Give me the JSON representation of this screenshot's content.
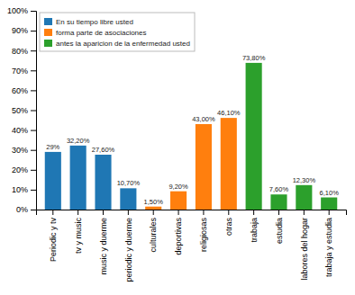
{
  "chart_data": {
    "type": "bar",
    "categories": [
      "Periodic y tv",
      "tv y music",
      "music y duerme",
      "periodic y duerme",
      "culturales",
      "deportivas",
      "religiosas",
      "otras",
      "trabaja",
      "estudia",
      "labores del hogar",
      "trabaja y estudia"
    ],
    "series": [
      {
        "name": "En su tiempo libre usted",
        "values": [
          29,
          32.2,
          27.6,
          10.7,
          0,
          0,
          0,
          0,
          0,
          0,
          0,
          0
        ],
        "value_labels": [
          "29%",
          "32,20%",
          "27,60%",
          "10,70%",
          null,
          null,
          null,
          null,
          null,
          null,
          null,
          null
        ]
      },
      {
        "name": "forma parte de asociaciones",
        "values": [
          0,
          0,
          0,
          0,
          1.5,
          9.2,
          43.0,
          46.1,
          0,
          0,
          0,
          0
        ],
        "value_labels": [
          null,
          null,
          null,
          null,
          "1,50%",
          "9,20%",
          "43,00%",
          "46,10%",
          null,
          null,
          null,
          null
        ]
      },
      {
        "name": "antes la aparicion de la enfermedad usted",
        "values": [
          0,
          0,
          0,
          0,
          0,
          0,
          0,
          0,
          73.8,
          7.6,
          12.3,
          6.1
        ],
        "value_labels": [
          null,
          null,
          null,
          null,
          null,
          null,
          null,
          null,
          "73,80%",
          "7,60%",
          "12,30%",
          "6,10%"
        ]
      }
    ],
    "ylim": [
      0,
      100
    ],
    "yticks": [
      {
        "value": 0,
        "label": "0%"
      },
      {
        "value": 10,
        "label": "10%"
      },
      {
        "value": 20,
        "label": "20%"
      },
      {
        "value": 30,
        "label": "30%"
      },
      {
        "value": 40,
        "label": "40%"
      },
      {
        "value": 50,
        "label": "50%"
      },
      {
        "value": 60,
        "label": "60%"
      },
      {
        "value": 70,
        "label": "70%"
      },
      {
        "value": 80,
        "label": "80%"
      },
      {
        "value": 90,
        "label": "90%"
      },
      {
        "value": 100,
        "label": "100%"
      }
    ],
    "data_labels": true,
    "legend": "upper left",
    "grid": false
  }
}
